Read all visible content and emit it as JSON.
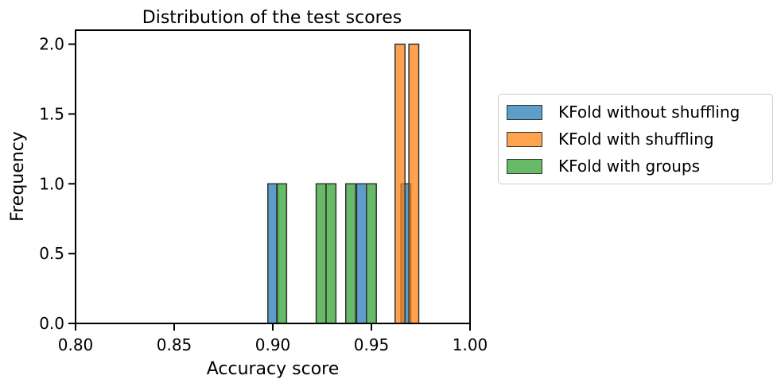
{
  "chart_data": {
    "type": "bar",
    "title": "Distribution of the test scores",
    "xlabel": "Accuracy score",
    "ylabel": "Frequency",
    "xlim": [
      0.8,
      1.0
    ],
    "ylim": [
      0.0,
      2.1
    ],
    "xticks": [
      "0.80",
      "0.85",
      "0.90",
      "0.95",
      "1.00"
    ],
    "xtick_values": [
      0.8,
      0.85,
      0.9,
      0.95,
      1.0
    ],
    "yticks": [
      "0.0",
      "0.5",
      "1.0",
      "1.5",
      "2.0"
    ],
    "ytick_values": [
      0.0,
      0.5,
      1.0,
      1.5,
      2.0
    ],
    "grid": false,
    "legend_position": "outside-right",
    "series": [
      {
        "name": "KFold without shuffling",
        "color": "#1f77b4",
        "bins": [
          {
            "x0": 0.8975,
            "x1": 0.9025,
            "count": 1
          },
          {
            "x0": 0.9425,
            "x1": 0.9475,
            "count": 1
          },
          {
            "x0": 0.965,
            "x1": 0.97,
            "count": 1
          }
        ]
      },
      {
        "name": "KFold with shuffling",
        "color": "#ff7f0e",
        "bins": [
          {
            "x0": 0.962,
            "x1": 0.967,
            "count": 2
          },
          {
            "x0": 0.969,
            "x1": 0.974,
            "count": 2
          }
        ]
      },
      {
        "name": "KFold with groups",
        "color": "#2ca02c",
        "bins": [
          {
            "x0": 0.902,
            "x1": 0.907,
            "count": 1
          },
          {
            "x0": 0.922,
            "x1": 0.927,
            "count": 1
          },
          {
            "x0": 0.927,
            "x1": 0.932,
            "count": 1
          },
          {
            "x0": 0.937,
            "x1": 0.942,
            "count": 1
          },
          {
            "x0": 0.9475,
            "x1": 0.9525,
            "count": 1
          }
        ]
      }
    ]
  }
}
